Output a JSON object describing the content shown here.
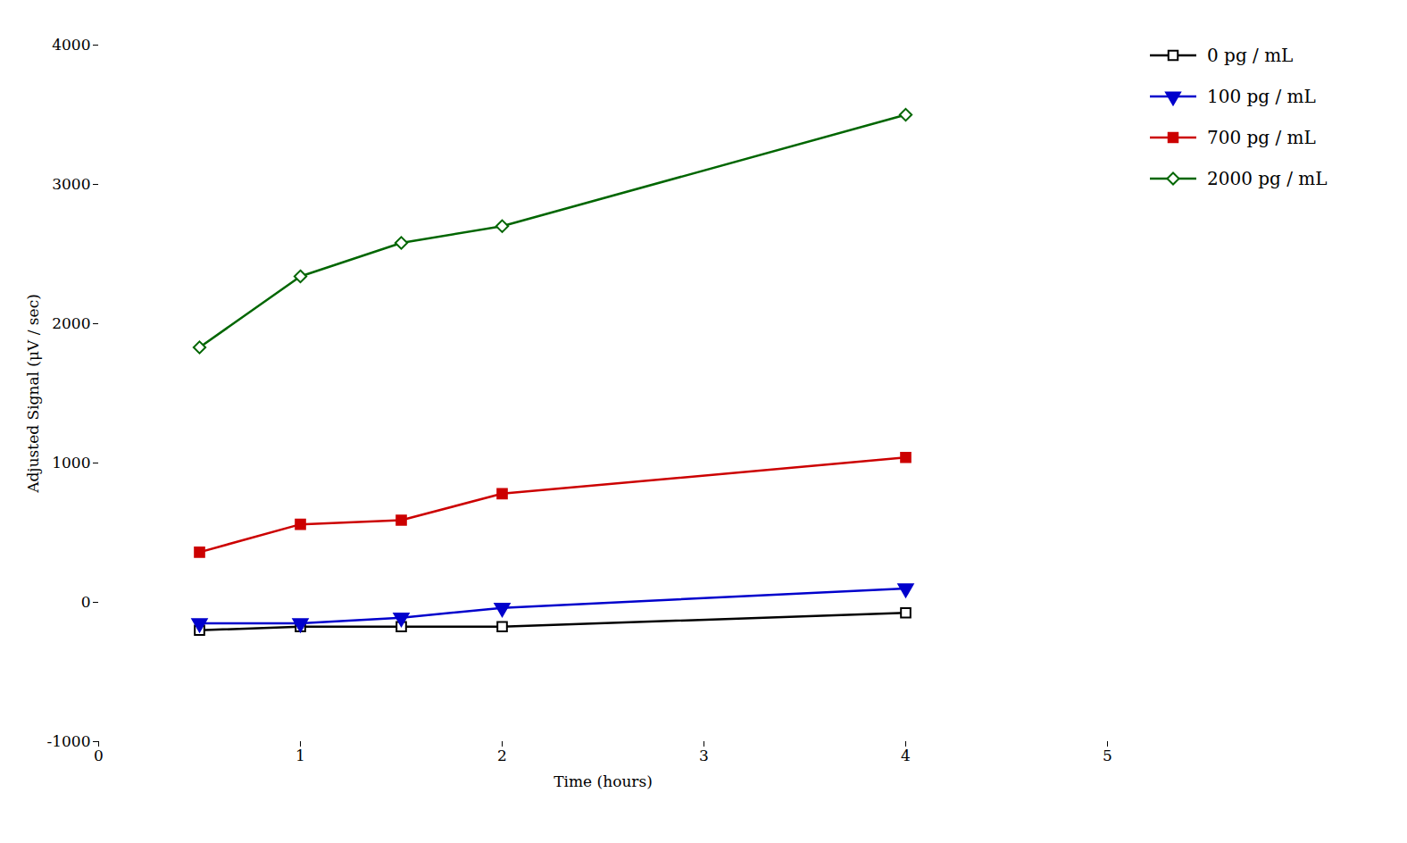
{
  "chart_data": {
    "type": "line",
    "xlabel": "Time (hours)",
    "ylabel": "Adjusted Signal (μV / sec)",
    "x": [
      0.5,
      1.0,
      1.5,
      2.0,
      4.0
    ],
    "series": [
      {
        "name": "0 pg / mL",
        "color": "#000000",
        "marker": "open square",
        "values": [
          -200,
          -175,
          -175,
          -175,
          -75
        ]
      },
      {
        "name": "100 pg / mL",
        "color": "#0000cc",
        "marker": "triangle-down",
        "values": [
          -150,
          -150,
          -110,
          -40,
          100
        ]
      },
      {
        "name": "700 pg / mL",
        "color": "#cc0000",
        "marker": "square",
        "values": [
          360,
          560,
          590,
          780,
          1040
        ]
      },
      {
        "name": "2000 pg / mL",
        "color": "#006600",
        "marker": "open diamond",
        "values": [
          1830,
          2340,
          2580,
          2700,
          3500
        ]
      }
    ],
    "xlim": [
      0,
      5
    ],
    "ylim": [
      -1000,
      4000
    ],
    "xticks": [
      0,
      1,
      2,
      3,
      4,
      5
    ],
    "yticks": [
      -1000,
      0,
      1000,
      2000,
      3000,
      4000
    ],
    "grid": false,
    "legend": "right"
  }
}
